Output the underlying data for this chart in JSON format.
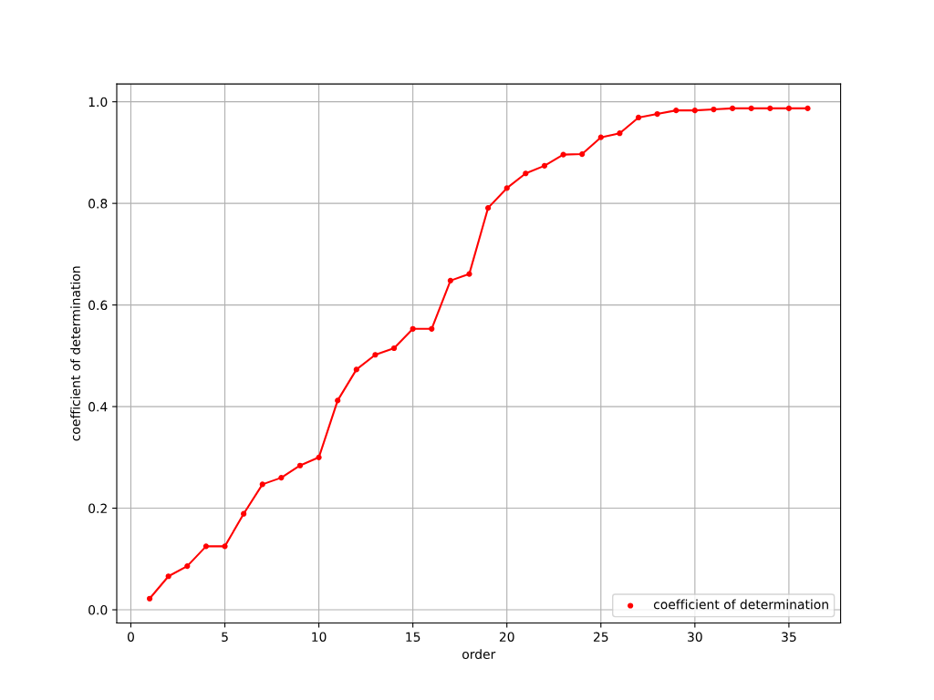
{
  "chart_data": {
    "type": "line",
    "xlabel": "order",
    "ylabel": "coefficient of determination",
    "x": [
      1,
      2,
      3,
      4,
      5,
      6,
      7,
      8,
      9,
      10,
      11,
      12,
      13,
      14,
      15,
      16,
      17,
      18,
      19,
      20,
      21,
      22,
      23,
      24,
      25,
      26,
      27,
      28,
      29,
      30,
      31,
      32,
      33,
      34,
      35,
      36
    ],
    "series": [
      {
        "color": "#ff0000",
        "values": [
          0.022,
          0.066,
          0.086,
          0.125,
          0.125,
          0.189,
          0.247,
          0.26,
          0.284,
          0.3,
          0.412,
          0.473,
          0.502,
          0.515,
          0.553,
          0.553,
          0.648,
          0.661,
          0.791,
          0.83,
          0.859,
          0.874,
          0.896,
          0.897,
          0.93,
          0.938,
          0.969,
          0.976,
          0.983,
          0.983,
          0.985,
          0.987,
          0.987,
          0.987,
          0.987,
          0.987
        ]
      },
      {
        "type": "scatter",
        "name": "coefficient of determination",
        "color": "#ff0000",
        "marker": "circle",
        "values": [
          0.022,
          0.066,
          0.086,
          0.125,
          0.125,
          0.189,
          0.247,
          0.26,
          0.284,
          0.3,
          0.412,
          0.473,
          0.502,
          0.515,
          0.553,
          0.553,
          0.648,
          0.661,
          0.791,
          0.83,
          0.859,
          0.874,
          0.896,
          0.897,
          0.93,
          0.938,
          0.969,
          0.976,
          0.983,
          0.983,
          0.985,
          0.987,
          0.987,
          0.987,
          0.987,
          0.987
        ]
      }
    ],
    "xlim": [
      -0.75,
      37.75
    ],
    "xticks": [
      0,
      5,
      10,
      15,
      20,
      25,
      30,
      35
    ],
    "ylim": [
      -0.026,
      1.035
    ],
    "yticks": [
      {
        "value": 0,
        "label": "0.0"
      },
      {
        "value": 0.2,
        "label": "0.2"
      },
      {
        "value": 0.4,
        "label": "0.4"
      },
      {
        "value": 0.6,
        "label": "0.6"
      },
      {
        "value": 0.8,
        "label": "0.8"
      },
      {
        "value": 1,
        "label": "1.0"
      }
    ],
    "grid": true,
    "legend": "bottom right"
  }
}
